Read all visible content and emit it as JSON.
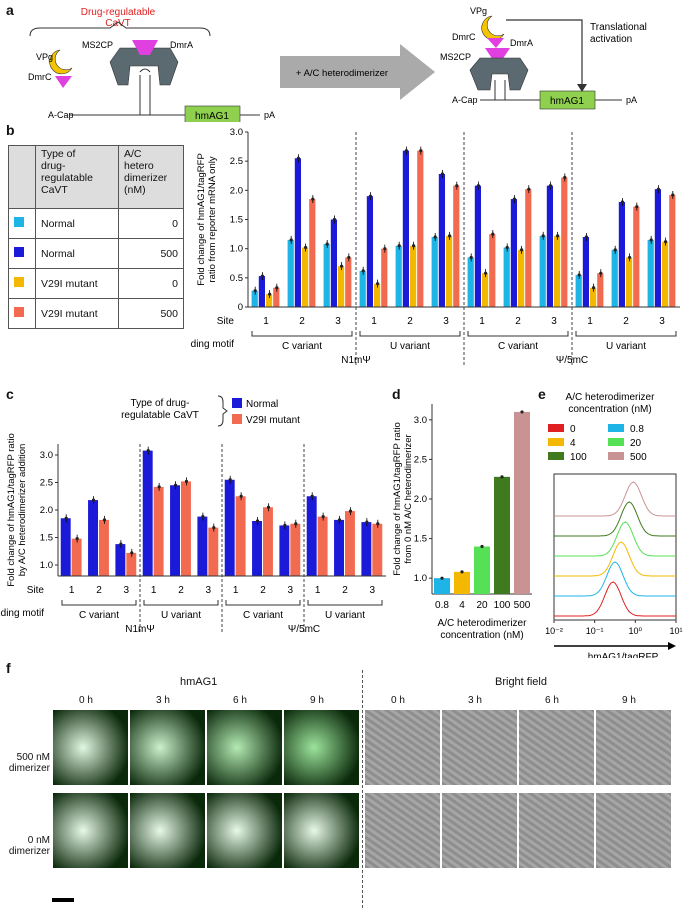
{
  "panels": {
    "a": "a",
    "b": "b",
    "c": "c",
    "d": "d",
    "e": "e",
    "f": "f"
  },
  "panel_a": {
    "bracket_title": "Drug-regulatable\nCaVT",
    "left_labels": {
      "vpg": "VPg",
      "dmrc": "DmrC",
      "ms2cp": "MS2CP",
      "dmra": "DmrA",
      "acap": "A-Cap",
      "gene": "hmAG1",
      "pa": "pA"
    },
    "arrow_label": "+ A/C heterodimerizer",
    "right_labels": {
      "vpg": "VPg",
      "dmrc": "DmrC",
      "dmra": "DmrA",
      "ms2cp": "MS2CP",
      "acap": "A-Cap",
      "gene": "hmAG1",
      "pa": "pA",
      "translational": "Translational\nactivation"
    }
  },
  "legend_table": {
    "header": {
      "type": "Type of\ndrug-\nregulatable\nCaVT",
      "conc": "A/C\nhetero\ndimerizer\n(nM)"
    },
    "rows": [
      {
        "type": "Normal",
        "conc": "0",
        "color": "#1eb4e6"
      },
      {
        "type": "Normal",
        "conc": "500",
        "color": "#1a1ad8"
      },
      {
        "type": "V29I mutant",
        "conc": "0",
        "color": "#f5b800"
      },
      {
        "type": "V29I mutant",
        "conc": "500",
        "color": "#f26b50"
      }
    ]
  },
  "chart_data": [
    {
      "id": "b",
      "type": "bar",
      "ylabel": "Fold change of hmAG1/tagRFP\nratio from reporter mRNA only",
      "ylim": [
        0,
        3.0
      ],
      "yticks": [
        "0",
        "0.5",
        "1.0",
        "1.5",
        "2.0",
        "2.5",
        "3.0"
      ],
      "categories": [
        "1",
        "2",
        "3",
        "1",
        "2",
        "3",
        "1",
        "2",
        "3",
        "1",
        "2",
        "3"
      ],
      "site_label": "Site",
      "motif_label": "Binding motif",
      "groups": [
        "C variant",
        "U variant",
        "C variant",
        "U variant"
      ],
      "modifications": [
        "N1mΨ",
        "Ψ/5mC"
      ],
      "series": [
        {
          "name": "Normal 0",
          "color": "#1eb4e6",
          "values": [
            0.28,
            1.15,
            1.08,
            0.62,
            1.05,
            1.2,
            0.85,
            1.02,
            1.22,
            0.55,
            0.98,
            1.15
          ]
        },
        {
          "name": "Normal 500",
          "color": "#1a1ad8",
          "values": [
            0.53,
            2.55,
            1.5,
            1.9,
            2.68,
            2.28,
            2.08,
            1.85,
            2.08,
            1.2,
            1.8,
            2.02
          ]
        },
        {
          "name": "V29I 0",
          "color": "#f5b800",
          "values": [
            0.22,
            1.02,
            0.7,
            0.4,
            1.05,
            1.22,
            0.58,
            0.98,
            1.22,
            0.33,
            0.85,
            1.12
          ]
        },
        {
          "name": "V29I 500",
          "color": "#f26b50",
          "values": [
            0.33,
            1.85,
            0.85,
            1.0,
            2.68,
            2.08,
            1.25,
            2.02,
            2.22,
            0.58,
            1.72,
            1.92
          ]
        }
      ]
    },
    {
      "id": "c",
      "type": "bar",
      "ylabel": "Fold change of hmAG1/tagRFP ratio\nby A/C heterodimerizer addition",
      "ylim": [
        0,
        3.2
      ],
      "yticks": [
        "1.0",
        "1.5",
        "2.0",
        "2.5",
        "3.0"
      ],
      "categories": [
        "1",
        "2",
        "3",
        "1",
        "2",
        "3",
        "1",
        "2",
        "3",
        "1",
        "2",
        "3"
      ],
      "site_label": "Site",
      "motif_label": "Binding motif",
      "groups": [
        "C variant",
        "U variant",
        "C variant",
        "U variant"
      ],
      "modifications": [
        "N1mΨ",
        "Ψ/5mC"
      ],
      "legend_title": "Type of drug-\nregulatable CaVT",
      "series": [
        {
          "name": "Normal",
          "color": "#1a1ad8",
          "values": [
            1.85,
            2.18,
            1.38,
            3.08,
            2.45,
            1.88,
            2.55,
            1.8,
            1.72,
            2.25,
            1.82,
            1.78
          ]
        },
        {
          "name": "V29I mutant",
          "color": "#f26b50",
          "values": [
            1.48,
            1.82,
            1.22,
            2.42,
            2.52,
            1.68,
            2.25,
            2.05,
            1.75,
            1.88,
            1.98,
            1.75
          ]
        }
      ]
    },
    {
      "id": "d",
      "type": "bar",
      "ylabel": "Fold change of hmAG1/tagRFP ratio\nfrom 0 nM A/C heterodimerizer",
      "xlabel": "A/C heterodimerizer\nconcentration (nM)",
      "ylim": [
        0.8,
        3.2
      ],
      "yticks": [
        "1.0",
        "1.5",
        "2.0",
        "2.5",
        "3.0"
      ],
      "categories": [
        "0.8",
        "4",
        "20",
        "100",
        "500"
      ],
      "colors": [
        "#1eb4e6",
        "#f5b800",
        "#55e055",
        "#3f7a1e",
        "#c99393"
      ],
      "values": [
        1.0,
        1.08,
        1.4,
        2.28,
        3.1
      ]
    },
    {
      "id": "e",
      "type": "line",
      "legend_title": "A/C heterodimerizer\nconcentration (nM)",
      "xlabel": "hmAG1/tagRFP",
      "xticks": [
        "10⁻²",
        "10⁻¹",
        "10⁰",
        "10¹"
      ],
      "series": [
        {
          "name": "0",
          "color": "#e02020",
          "peak": -0.55
        },
        {
          "name": "0.8",
          "color": "#1eb4e6",
          "peak": -0.5
        },
        {
          "name": "4",
          "color": "#f5b800",
          "peak": -0.35
        },
        {
          "name": "20",
          "color": "#55e055",
          "peak": -0.25
        },
        {
          "name": "100",
          "color": "#3f7a1e",
          "peak": -0.15
        },
        {
          "name": "500",
          "color": "#c99393",
          "peak": -0.05
        }
      ]
    }
  ],
  "panel_f": {
    "hmag_title": "hmAG1",
    "bf_title": "Bright field",
    "times": [
      "0 h",
      "3 h",
      "6 h",
      "9 h"
    ],
    "rows": [
      "500 nM\ndimerizer",
      "0 nM\ndimerizer"
    ]
  }
}
